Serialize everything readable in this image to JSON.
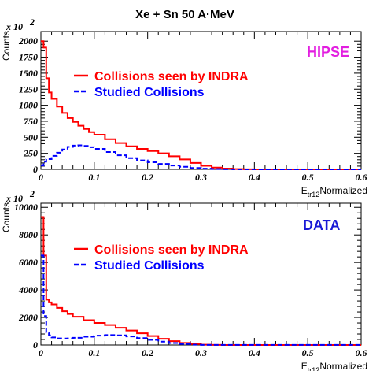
{
  "title": "Xe + Sn 50 A·MeV",
  "chart_data": [
    {
      "type": "line",
      "panel_label": "HIPSE",
      "panel_label_color": "#e21ee0",
      "ylabel": "Counts",
      "y_multiplier": "x 10",
      "y_multiplier_exp": "2",
      "xlabel_main": "E",
      "xlabel_sub": "tr12",
      "xlabel_rest": "Normalized",
      "xlim": [
        0,
        0.6
      ],
      "ylim": [
        0,
        2150
      ],
      "xticks": [
        0,
        0.1,
        0.2,
        0.3,
        0.4,
        0.5,
        0.6
      ],
      "xtick_labels": [
        "0",
        "0.1",
        "0.2",
        "0.3",
        "0.4",
        "0.5",
        "0.6"
      ],
      "yticks": [
        0,
        250,
        500,
        750,
        1000,
        1250,
        1500,
        1750,
        2000
      ],
      "ytick_labels": [
        "0",
        "250",
        "500",
        "750",
        "1000",
        "1250",
        "1500",
        "1750",
        "2000"
      ],
      "legend_position": "upper-middle",
      "series": [
        {
          "name": "Collisions seen by INDRA",
          "color": "#ff0000",
          "style": "solid",
          "x": [
            0,
            0.005,
            0.01,
            0.015,
            0.02,
            0.03,
            0.04,
            0.05,
            0.06,
            0.07,
            0.08,
            0.09,
            0.1,
            0.12,
            0.14,
            0.16,
            0.18,
            0.2,
            0.22,
            0.24,
            0.26,
            0.28,
            0.3,
            0.32,
            0.34,
            0.36,
            0.38,
            0.4,
            0.6
          ],
          "y": [
            2000,
            1900,
            1420,
            1200,
            1100,
            980,
            880,
            800,
            740,
            680,
            630,
            580,
            540,
            470,
            410,
            360,
            320,
            285,
            250,
            205,
            155,
            100,
            55,
            28,
            12,
            5,
            2,
            0,
            0
          ]
        },
        {
          "name": "Studied Collisions",
          "color": "#0000ff",
          "style": "dashed",
          "x": [
            0,
            0.005,
            0.01,
            0.02,
            0.03,
            0.04,
            0.05,
            0.06,
            0.07,
            0.08,
            0.09,
            0.1,
            0.12,
            0.14,
            0.16,
            0.18,
            0.2,
            0.22,
            0.24,
            0.26,
            0.28,
            0.3,
            0.32,
            0.34,
            0.36,
            0.38,
            0.6
          ],
          "y": [
            60,
            120,
            160,
            210,
            260,
            310,
            350,
            370,
            375,
            365,
            345,
            320,
            270,
            220,
            175,
            140,
            110,
            85,
            60,
            40,
            22,
            10,
            4,
            1,
            0,
            0,
            0
          ]
        }
      ]
    },
    {
      "type": "line",
      "panel_label": "DATA",
      "panel_label_color": "#1a1ad6",
      "ylabel": "Counts",
      "y_multiplier": "x 10",
      "y_multiplier_exp": "2",
      "xlabel_main": "E",
      "xlabel_sub": "tr12",
      "xlabel_rest": "Normalized",
      "xlim": [
        0,
        0.6
      ],
      "ylim": [
        0,
        10300
      ],
      "xticks": [
        0,
        0.1,
        0.2,
        0.3,
        0.4,
        0.5,
        0.6
      ],
      "xtick_labels": [
        "0",
        "0.1",
        "0.2",
        "0.3",
        "0.4",
        "0.5",
        "0.6"
      ],
      "yticks": [
        0,
        2000,
        4000,
        6000,
        8000,
        10000
      ],
      "ytick_labels": [
        "0",
        "2000",
        "4000",
        "6000",
        "8000",
        "10000"
      ],
      "legend_position": "upper-middle",
      "series": [
        {
          "name": "Collisions seen by INDRA",
          "color": "#ff0000",
          "style": "solid",
          "x": [
            0,
            0.005,
            0.01,
            0.015,
            0.02,
            0.03,
            0.04,
            0.05,
            0.06,
            0.08,
            0.1,
            0.12,
            0.14,
            0.16,
            0.18,
            0.2,
            0.22,
            0.24,
            0.26,
            0.28,
            0.3,
            0.32,
            0.34,
            0.6
          ],
          "y": [
            9300,
            6500,
            3300,
            3100,
            2950,
            2700,
            2450,
            2250,
            2050,
            1800,
            1600,
            1450,
            1250,
            1050,
            850,
            650,
            450,
            280,
            150,
            70,
            25,
            8,
            0,
            0
          ]
        },
        {
          "name": "Studied Collisions",
          "color": "#0000ff",
          "style": "dashed",
          "x": [
            0,
            0.005,
            0.01,
            0.015,
            0.02,
            0.03,
            0.04,
            0.05,
            0.06,
            0.08,
            0.1,
            0.12,
            0.14,
            0.16,
            0.18,
            0.2,
            0.22,
            0.24,
            0.26,
            0.28,
            0.3,
            0.6
          ],
          "y": [
            6500,
            2100,
            900,
            700,
            550,
            480,
            470,
            480,
            520,
            600,
            680,
            720,
            700,
            620,
            500,
            370,
            240,
            140,
            70,
            25,
            5,
            0
          ]
        }
      ]
    }
  ]
}
